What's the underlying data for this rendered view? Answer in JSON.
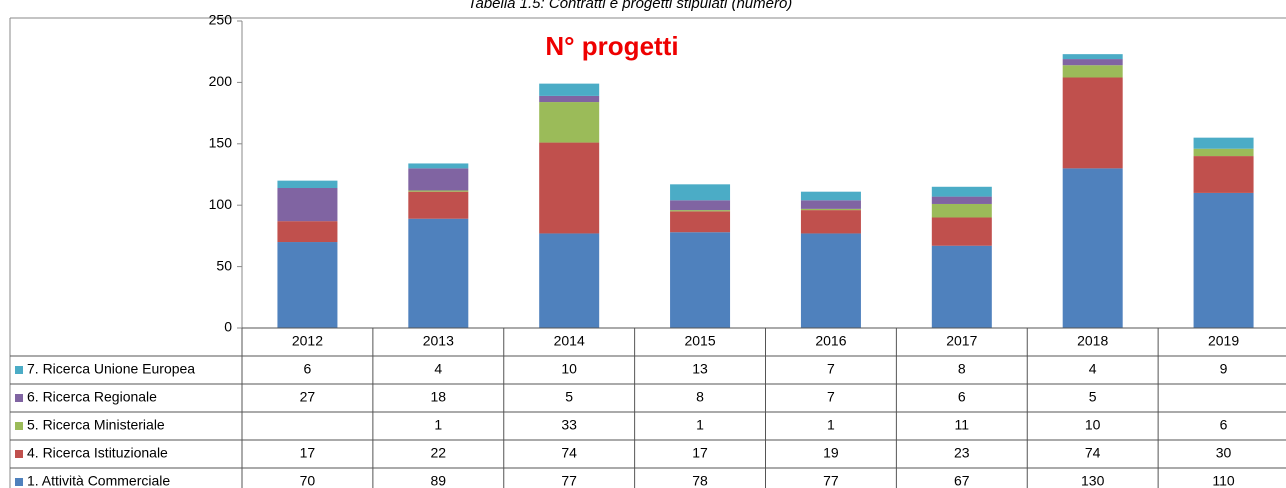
{
  "caption": "Tabella 1.5: Contratti e progetti stipulati (numero)",
  "chart_data": {
    "type": "bar",
    "stacked": true,
    "title": "N° progetti",
    "categories": [
      "2012",
      "2013",
      "2014",
      "2015",
      "2016",
      "2017",
      "2018",
      "2019"
    ],
    "series": [
      {
        "name": "7. Ricerca Unione Europea",
        "color": "#4bacc6",
        "values": [
          6,
          4,
          10,
          13,
          7,
          8,
          4,
          9
        ]
      },
      {
        "name": "6. Ricerca Regionale",
        "color": "#8064a2",
        "values": [
          27,
          18,
          5,
          8,
          7,
          6,
          5,
          null
        ]
      },
      {
        "name": "5. Ricerca Ministeriale",
        "color": "#9bbb59",
        "values": [
          null,
          1,
          33,
          1,
          1,
          11,
          10,
          6
        ]
      },
      {
        "name": "4. Ricerca Istituzionale",
        "color": "#c0504d",
        "values": [
          17,
          22,
          74,
          17,
          19,
          23,
          74,
          30
        ]
      },
      {
        "name": "1. Attività Commerciale",
        "color": "#4f81bd",
        "values": [
          70,
          89,
          77,
          78,
          77,
          67,
          130,
          110
        ]
      }
    ],
    "ylim": [
      0,
      250
    ],
    "yticks": [
      0,
      50,
      100,
      150,
      200,
      250
    ],
    "grid": false
  }
}
